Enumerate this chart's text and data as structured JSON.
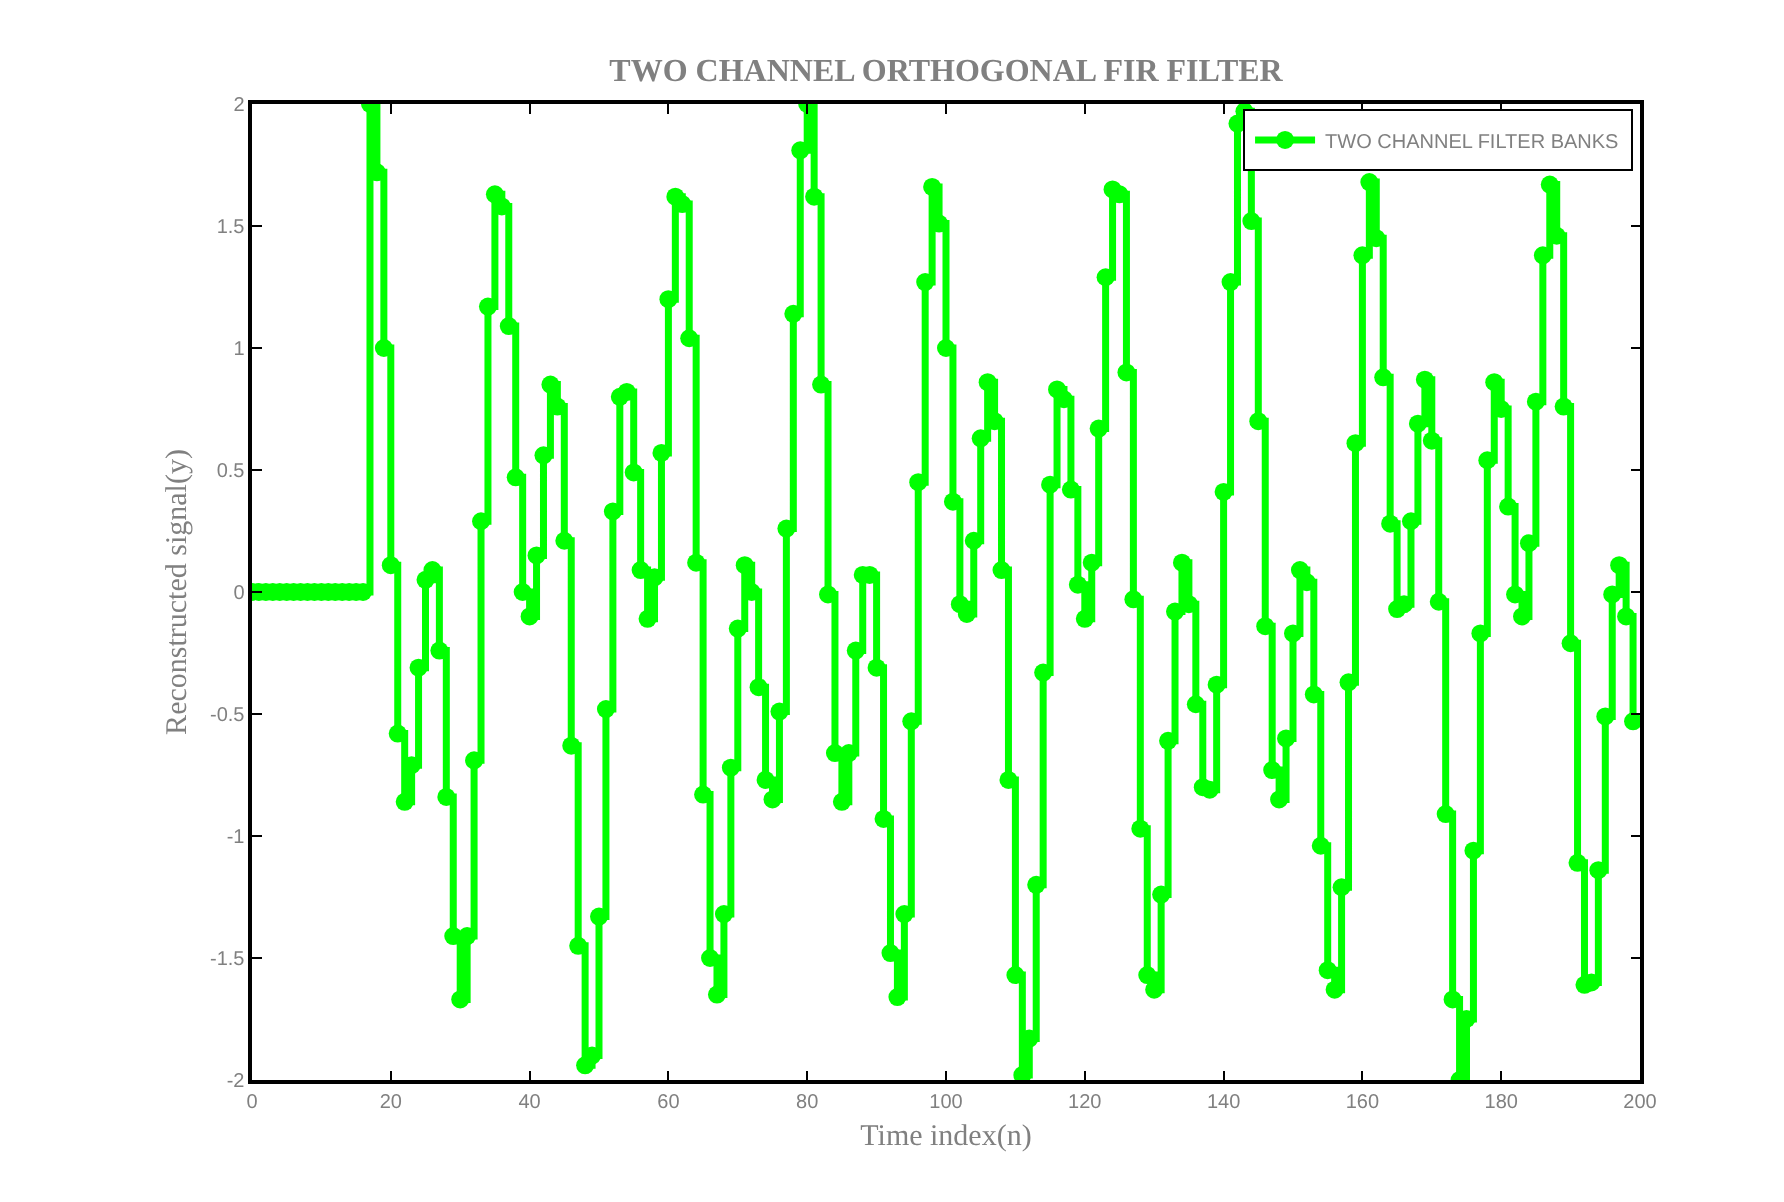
{
  "chart_data": {
    "type": "step",
    "title": "TWO CHANNEL ORTHOGONAL FIR FILTER",
    "xlabel": "Time index(n)",
    "ylabel": "Reconstructed signal(y)",
    "x": [
      0,
      1,
      2,
      3,
      4,
      5,
      6,
      7,
      8,
      9,
      10,
      11,
      12,
      13,
      14,
      15,
      16,
      17,
      18,
      19,
      20,
      21,
      22,
      23,
      24,
      25,
      26,
      27,
      28,
      29,
      30,
      31,
      32,
      33,
      34,
      35,
      36,
      37,
      38,
      39,
      40,
      41,
      42,
      43,
      44,
      45,
      46,
      47,
      48,
      49,
      50,
      51,
      52,
      53,
      54,
      55,
      56,
      57,
      58,
      59,
      60,
      61,
      62,
      63,
      64,
      65,
      66,
      67,
      68,
      69,
      70,
      71,
      72,
      73,
      74,
      75,
      76,
      77,
      78,
      79,
      80,
      81,
      82,
      83,
      84,
      85,
      86,
      87,
      88,
      89,
      90,
      91,
      92,
      93,
      94,
      95,
      96,
      97,
      98,
      99,
      100,
      101,
      102,
      103,
      104,
      105,
      106,
      107,
      108,
      109,
      110,
      111,
      112,
      113,
      114,
      115,
      116,
      117,
      118,
      119,
      120,
      121,
      122,
      123,
      124,
      125,
      126,
      127,
      128,
      129,
      130,
      131,
      132,
      133,
      134,
      135,
      136,
      137,
      138,
      139,
      140,
      141,
      142,
      143,
      144,
      145,
      146,
      147,
      148,
      149,
      150,
      151,
      152,
      153,
      154,
      155,
      156,
      157,
      158,
      159,
      160,
      161,
      162,
      163,
      164,
      165,
      166,
      167,
      168,
      169,
      170,
      171,
      172,
      173,
      174,
      175,
      176,
      177,
      178,
      179,
      180,
      181,
      182,
      183,
      184,
      185,
      186,
      187,
      188,
      189,
      190,
      191,
      192,
      193,
      194,
      195,
      196,
      197,
      198,
      199
    ],
    "series": [
      {
        "name": "TWO CHANNEL FILTER BANKS",
        "color": "#00ff00",
        "values": [
          0,
          0,
          0,
          0,
          0,
          0,
          0,
          0,
          0,
          0,
          0,
          0,
          0,
          0,
          0,
          0,
          0,
          2.0,
          1.72,
          1.0,
          0.11,
          -0.58,
          -0.86,
          -0.71,
          -0.31,
          0.05,
          0.09,
          -0.24,
          -0.84,
          -1.41,
          -1.67,
          -1.41,
          -0.69,
          0.29,
          1.17,
          1.63,
          1.58,
          1.09,
          0.47,
          0.0,
          -0.1,
          0.15,
          0.56,
          0.85,
          0.76,
          0.21,
          -0.63,
          -1.45,
          -1.94,
          -1.9,
          -1.33,
          -0.48,
          0.33,
          0.8,
          0.82,
          0.49,
          0.09,
          -0.11,
          0.06,
          0.57,
          1.2,
          1.62,
          1.59,
          1.04,
          0.12,
          -0.83,
          -1.5,
          -1.65,
          -1.32,
          -0.72,
          -0.15,
          0.11,
          0.0,
          -0.39,
          -0.77,
          -0.85,
          -0.49,
          0.26,
          1.14,
          1.81,
          2.0,
          1.62,
          0.85,
          -0.01,
          -0.66,
          -0.86,
          -0.66,
          -0.24,
          0.07,
          0.07,
          -0.31,
          -0.93,
          -1.48,
          -1.66,
          -1.32,
          -0.53,
          0.45,
          1.27,
          1.66,
          1.51,
          1.0,
          0.37,
          -0.05,
          -0.09,
          0.21,
          0.63,
          0.86,
          0.7,
          0.09,
          -0.77,
          -1.57,
          -1.98,
          -1.83,
          -1.2,
          -0.33,
          0.44,
          0.83,
          0.79,
          0.42,
          0.03,
          -0.11,
          0.12,
          0.67,
          1.29,
          1.65,
          1.63,
          0.9,
          -0.03,
          -0.97,
          -1.57,
          -1.63,
          -1.24,
          -0.61,
          -0.08,
          0.12,
          -0.05,
          -0.46,
          -0.8,
          -0.81,
          -0.38,
          0.41,
          1.27,
          1.92,
          1.97,
          1.52,
          0.7,
          -0.14,
          -0.73,
          -0.85,
          -0.6,
          -0.17,
          0.09,
          0.04,
          -0.42,
          -1.04,
          -1.55,
          -1.63,
          -1.21,
          -0.37,
          0.61,
          1.38,
          1.68,
          1.45,
          0.88,
          0.28,
          -0.07,
          -0.05,
          0.29,
          0.69,
          0.87,
          0.62,
          -0.04,
          -0.91,
          -1.67,
          -2.0,
          -1.75,
          -1.06,
          -0.17,
          0.54,
          0.86,
          0.75,
          0.35,
          -0.01,
          -0.1,
          0.2,
          0.78,
          1.38,
          1.67,
          1.46,
          0.76,
          -0.21,
          -1.11,
          -1.61,
          -1.6,
          -1.14,
          -0.51,
          -0.01,
          0.11,
          -0.1,
          -0.53
        ]
      }
    ],
    "xlim": [
      0,
      200
    ],
    "xticks": [
      0,
      20,
      40,
      60,
      80,
      100,
      120,
      140,
      160,
      180,
      200
    ],
    "ylim": [
      -2,
      2
    ],
    "yticks": [
      -2,
      -1.5,
      -1,
      -0.5,
      0,
      0.5,
      1,
      1.5,
      2
    ],
    "marker": "circle",
    "line_style": "solid",
    "legend": "top right",
    "grid": false
  }
}
